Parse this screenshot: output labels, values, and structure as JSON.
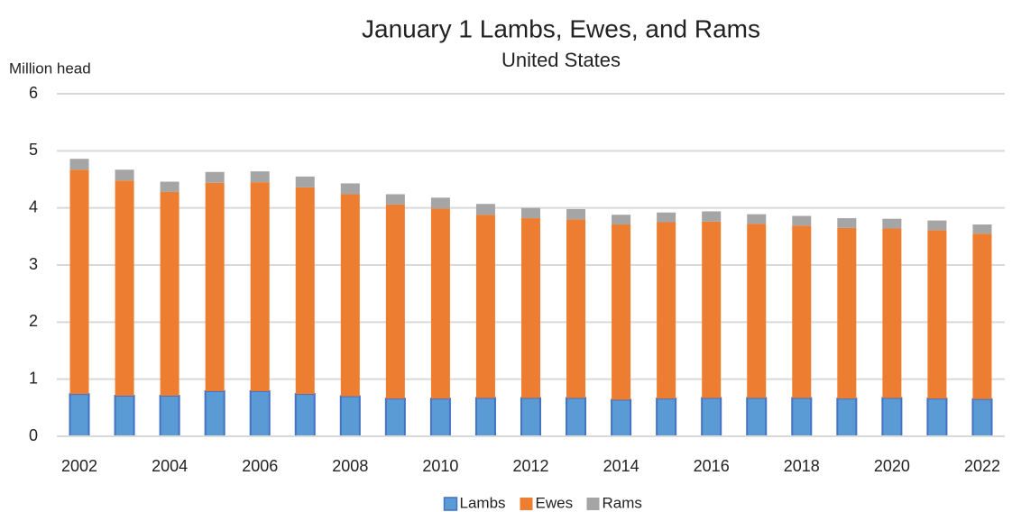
{
  "chart_data": {
    "type": "stacked_bar",
    "title": "January 1 Lambs, Ewes, and Rams",
    "subtitle": "United States",
    "y_label": "Million head",
    "categories": [
      "2002",
      null,
      "2004",
      null,
      "2006",
      null,
      "2008",
      null,
      "2010",
      null,
      "2012",
      null,
      "2014",
      null,
      "2016",
      null,
      "2018",
      null,
      "2020",
      null,
      "2022"
    ],
    "series": [
      {
        "name": "Lambs",
        "color": "#5b9bd5",
        "values": [
          0.74,
          0.71,
          0.71,
          0.79,
          0.79,
          0.74,
          0.7,
          0.66,
          0.66,
          0.67,
          0.67,
          0.67,
          0.64,
          0.66,
          0.67,
          0.67,
          0.67,
          0.66,
          0.67,
          0.66,
          0.65
        ]
      },
      {
        "name": "Ewes",
        "color": "#ed7d31",
        "values": [
          3.93,
          3.77,
          3.57,
          3.65,
          3.66,
          3.62,
          3.54,
          3.4,
          3.33,
          3.21,
          3.15,
          3.13,
          3.07,
          3.09,
          3.09,
          3.05,
          3.02,
          2.99,
          2.97,
          2.95,
          2.9
        ]
      },
      {
        "name": "Rams",
        "color": "#a5a5a5",
        "values": [
          0.19,
          0.19,
          0.18,
          0.19,
          0.19,
          0.19,
          0.19,
          0.18,
          0.19,
          0.19,
          0.18,
          0.18,
          0.17,
          0.17,
          0.18,
          0.17,
          0.17,
          0.17,
          0.17,
          0.17,
          0.16
        ]
      }
    ],
    "ylim": [
      0,
      6
    ],
    "yticks": [
      0,
      1,
      2,
      3,
      4,
      5,
      6
    ],
    "grid": true,
    "legend": "bottom"
  }
}
